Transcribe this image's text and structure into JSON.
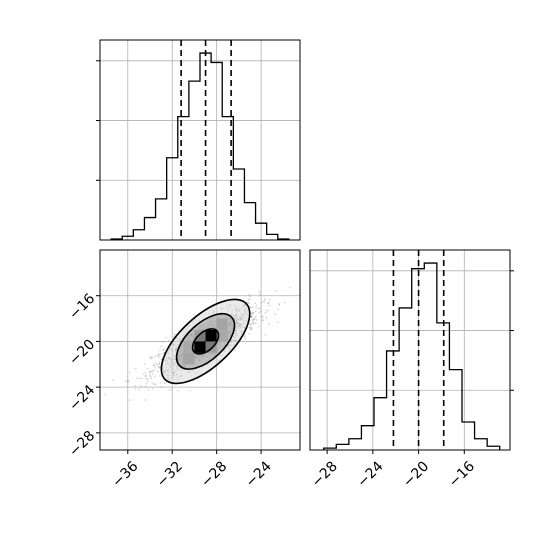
{
  "chart_data": [
    {
      "type": "histogram",
      "variable": "x",
      "xlim": [
        -38.5,
        -20.5
      ],
      "ylim": [
        0,
        1.0
      ],
      "grid": true,
      "bin_edges": [
        -37.5,
        -36.5,
        -35.5,
        -34.5,
        -33.5,
        -32.5,
        -31.5,
        -30.5,
        -29.5,
        -28.5,
        -27.5,
        -26.5,
        -25.5,
        -24.5,
        -23.5,
        -22.5,
        -21.5
      ],
      "relative_counts": [
        0.005,
        0.02,
        0.055,
        0.12,
        0.22,
        0.44,
        0.66,
        0.85,
        1.0,
        0.95,
        0.66,
        0.38,
        0.2,
        0.09,
        0.03,
        0.005
      ],
      "quantile_lines": [
        -31.2,
        -29.0,
        -26.7
      ],
      "show_tick_labels": false
    },
    {
      "type": "heatmap",
      "variables": [
        "x",
        "y"
      ],
      "xlim": [
        -38.5,
        -20.5
      ],
      "ylim": [
        -29.5,
        -12.0
      ],
      "xticks": [
        -36,
        -32,
        -28,
        -24
      ],
      "yticks": [
        -28,
        -24,
        -20,
        -16
      ],
      "xtick_labels": [
        "−36",
        "−32",
        "−28",
        "−24"
      ],
      "ytick_labels": [
        "−28",
        "−24",
        "−20",
        "−16"
      ],
      "grid": true,
      "center": [
        -29.0,
        -20.0
      ],
      "correlation": "positive",
      "contours": [
        {
          "level": "inner",
          "semi_major": 1.4,
          "semi_minor": 0.8
        },
        {
          "level": "middle",
          "semi_major": 3.2,
          "semi_minor": 1.6
        },
        {
          "level": "outer",
          "semi_major": 5.0,
          "semi_minor": 2.2
        }
      ],
      "density_cells": [
        {
          "x": -29.5,
          "y": -20.5,
          "shade": 1.0
        },
        {
          "x": -28.5,
          "y": -19.5,
          "shade": 1.0
        },
        {
          "x": -29.5,
          "y": -19.5,
          "shade": 0.55
        },
        {
          "x": -28.5,
          "y": -20.5,
          "shade": 0.55
        },
        {
          "x": -30.5,
          "y": -21.5,
          "shade": 0.45
        },
        {
          "x": -27.5,
          "y": -18.5,
          "shade": 0.45
        },
        {
          "x": -30.5,
          "y": -20.5,
          "shade": 0.35
        },
        {
          "x": -27.5,
          "y": -19.5,
          "shade": 0.35
        }
      ]
    },
    {
      "type": "histogram",
      "variable": "y",
      "xlim": [
        -29.5,
        -12.0
      ],
      "ylim": [
        0,
        1.0
      ],
      "xticks": [
        -28,
        -24,
        -20,
        -16
      ],
      "xtick_labels": [
        "−28",
        "−24",
        "−20",
        "−16"
      ],
      "grid": true,
      "bin_edges": [
        -28.3,
        -27.2,
        -26.1,
        -25.0,
        -23.9,
        -22.8,
        -21.7,
        -20.6,
        -19.5,
        -18.4,
        -17.3,
        -16.2,
        -15.1,
        -14.0,
        -12.9
      ],
      "relative_counts": [
        0.01,
        0.03,
        0.06,
        0.13,
        0.28,
        0.53,
        0.76,
        0.97,
        1.0,
        0.68,
        0.43,
        0.15,
        0.06,
        0.02
      ],
      "quantile_lines": [
        -22.2,
        -20.0,
        -17.8
      ],
      "show_tick_labels": true
    }
  ]
}
